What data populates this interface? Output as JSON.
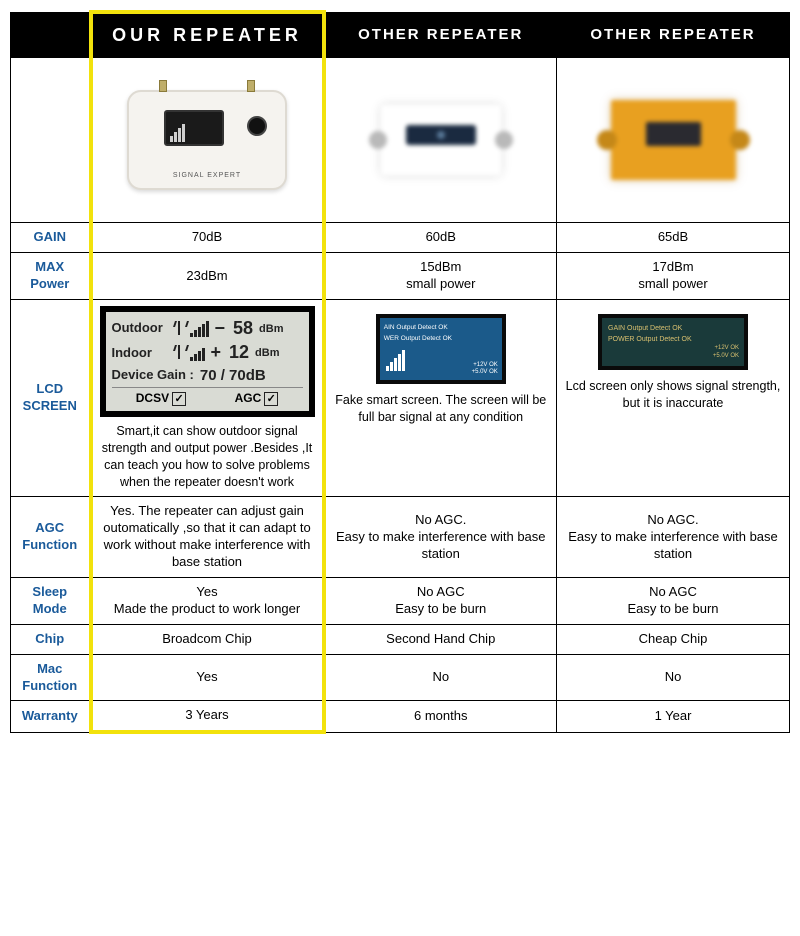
{
  "colors": {
    "header_bg": "#000000",
    "header_fg": "#ffffff",
    "rowlabel": "#1a5a9a",
    "highlight_border": "#f2e20c",
    "border": "#000000",
    "lcd_our_bg": "#d9dbd4",
    "lcd_o1_bg": "#1b5a8a",
    "lcd_o2_bg": "#1a3a3a",
    "device_gold": "#e8a020"
  },
  "headers": {
    "col1": "",
    "our": "OUR REPEATER",
    "other1": "OTHER REPEATER",
    "other2": "OTHER REPEATER"
  },
  "rows": {
    "gain": {
      "label": "GAIN",
      "our": "70dB",
      "other1": "60dB",
      "other2": "65dB"
    },
    "power": {
      "label": "MAX\nPower",
      "our": "23dBm",
      "other1": "15dBm\nsmall power",
      "other2": "17dBm\nsmall power"
    },
    "lcd": {
      "label": "LCD\nSCREEN",
      "our_caption": "Smart,it can show outdoor signal strength and output power .Besides ,It can teach you how to solve problems when the repeater doesn't work",
      "other1_caption": "Fake smart screen. The screen will be full bar signal at any condition",
      "other2_caption": "Lcd screen only shows signal strength, but it is inaccurate"
    },
    "agc": {
      "label": "AGC\nFunction",
      "our": "Yes. The repeater can adjust gain outomatically ,so that it can adapt to work without make interference with base station",
      "other1": "No AGC.\nEasy to make interference with base station",
      "other2": "No AGC.\nEasy to make interference with base station"
    },
    "sleep": {
      "label": "Sleep\nMode",
      "our": "Yes\nMade the product to work longer",
      "other1": "No AGC\nEasy to be burn",
      "other2": "No AGC\nEasy to be burn"
    },
    "chip": {
      "label": "Chip",
      "our": "Broadcom Chip",
      "other1": "Second Hand Chip",
      "other2": "Cheap Chip"
    },
    "mac": {
      "label": "Mac\nFunction",
      "our": "Yes",
      "other1": "No",
      "other2": "No"
    },
    "warranty": {
      "label": "Warranty",
      "our": "3 Years",
      "other1": "6 months",
      "other2": "1 Year"
    }
  },
  "lcd_our_display": {
    "outdoor_label": "Outdoor",
    "outdoor_sign": "−",
    "outdoor_value": "58",
    "outdoor_unit": "dBm",
    "indoor_label": "Indoor",
    "indoor_sign": "+",
    "indoor_value": "12",
    "indoor_unit": "dBm",
    "device_gain_label": "Device Gain :",
    "device_gain_value": "70 / 70dB",
    "dcsv": "DCSV",
    "agc": "AGC",
    "check": "✓"
  },
  "lcd_other1_display": {
    "line1": "AIN Output Detect   OK",
    "line2": "WER Output Detect   OK",
    "side1": "+12V  OK",
    "side2": "+5.0V OK"
  },
  "lcd_other2_display": {
    "line1": "GAIN Output Detect    OK",
    "line2": "POWER Output Detect  OK",
    "side1": "+12V OK",
    "side2": "+5.0V OK"
  },
  "device_our_label": "SIGNAL EXPERT"
}
